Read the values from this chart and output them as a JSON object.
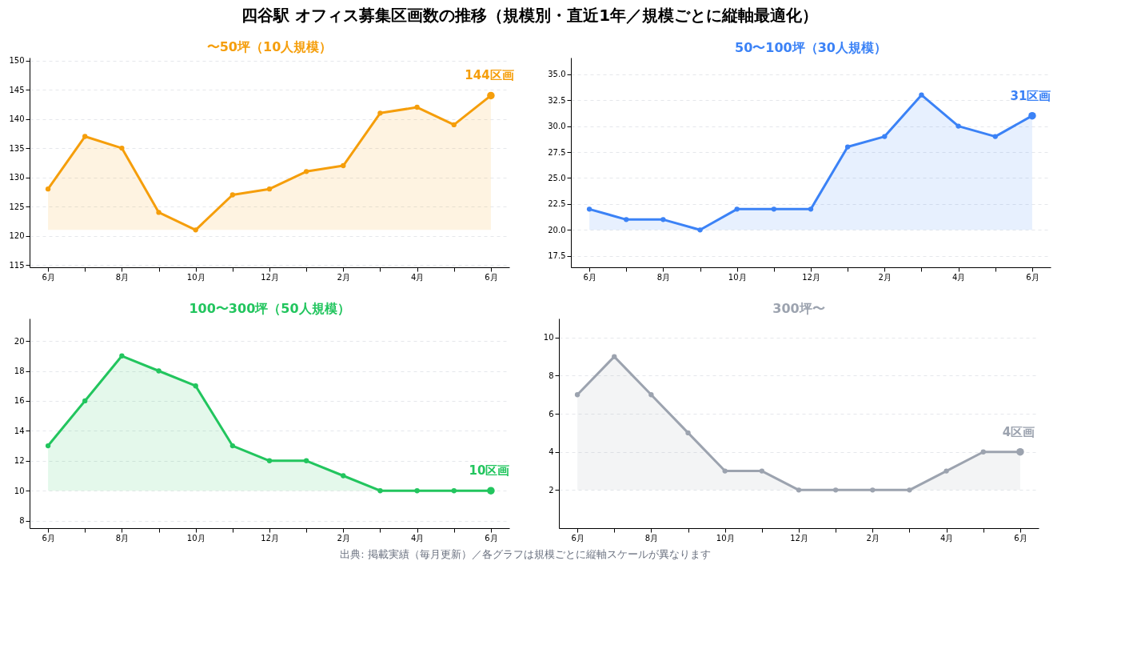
{
  "chart_data": [
    {
      "type": "area",
      "title": "四谷駅 オフィス募集区画数の推移（規模別・直近1年／規模ごとに縦軸最適化）",
      "subtitle": "〜50坪（10人規模）",
      "categories": [
        "6月",
        null,
        "8月",
        null,
        "10月",
        null,
        "12月",
        null,
        "2月",
        null,
        "4月",
        null,
        "6月"
      ],
      "series": [
        {
          "color": "#f59e0b",
          "values": [
            128,
            137,
            135,
            124,
            121,
            127,
            128,
            131,
            132,
            141,
            142,
            139,
            144
          ]
        }
      ],
      "ylim": [
        114.6,
        150.5
      ],
      "yticks": [
        115,
        120,
        125,
        130,
        135,
        140,
        145,
        150
      ],
      "grid": "y",
      "marker": "circle",
      "line_style": "solid",
      "annotations": [
        "144区画"
      ]
    },
    {
      "type": "area",
      "title": "50〜100坪（30人規模）",
      "categories": [
        "6月",
        null,
        "8月",
        null,
        "10月",
        null,
        "12月",
        null,
        "2月",
        null,
        "4月",
        null,
        "6月"
      ],
      "series": [
        {
          "color": "#3b82f6",
          "values": [
            22,
            21,
            21,
            20,
            22,
            22,
            22,
            28,
            29,
            33,
            30,
            29,
            31
          ]
        }
      ],
      "ylim": [
        16.4,
        36.6
      ],
      "yticks": [
        {
          "value": 17.5,
          "label": "17.5"
        },
        {
          "value": 20,
          "label": "20.0"
        },
        {
          "value": 22.5,
          "label": "22.5"
        },
        {
          "value": 25,
          "label": "25.0"
        },
        {
          "value": 27.5,
          "label": "27.5"
        },
        {
          "value": 30,
          "label": "30.0"
        },
        {
          "value": 32.5,
          "label": "32.5"
        },
        {
          "value": 35,
          "label": "35.0"
        }
      ],
      "grid": "y",
      "marker": "circle",
      "line_style": "solid",
      "annotations": [
        "31区画"
      ]
    },
    {
      "type": "area",
      "title": "100〜300坪（50人規模）",
      "categories": [
        "6月",
        null,
        "8月",
        null,
        "10月",
        null,
        "12月",
        null,
        "2月",
        null,
        "4月",
        null,
        "6月"
      ],
      "series": [
        {
          "color": "#22c55e",
          "values": [
            13,
            16,
            19,
            18,
            17,
            13,
            12,
            12,
            11,
            10,
            10,
            10,
            10
          ]
        }
      ],
      "ylim": [
        7.5,
        21.5
      ],
      "yticks": [
        8,
        10,
        12,
        14,
        16,
        18,
        20
      ],
      "grid": "y",
      "marker": "circle",
      "line_style": "solid",
      "annotations": [
        "10区画"
      ]
    },
    {
      "type": "area",
      "title": "300坪〜",
      "categories": [
        "6月",
        null,
        "8月",
        null,
        "10月",
        null,
        "12月",
        null,
        "2月",
        null,
        "4月",
        null,
        "6月"
      ],
      "series": [
        {
          "color": "#9ca3af",
          "values": [
            7,
            9,
            7,
            5,
            3,
            3,
            2,
            2,
            2,
            2,
            3,
            4,
            4
          ]
        }
      ],
      "ylim": [
        0,
        11
      ],
      "yticks": [
        2,
        4,
        6,
        8,
        10
      ],
      "grid": "y",
      "marker": "circle",
      "line_style": "solid",
      "annotations": [
        "4区画",
        "出典: 掲載実績（毎月更新）／各グラフは規模ごとに縦軸スケールが異なります"
      ]
    }
  ]
}
